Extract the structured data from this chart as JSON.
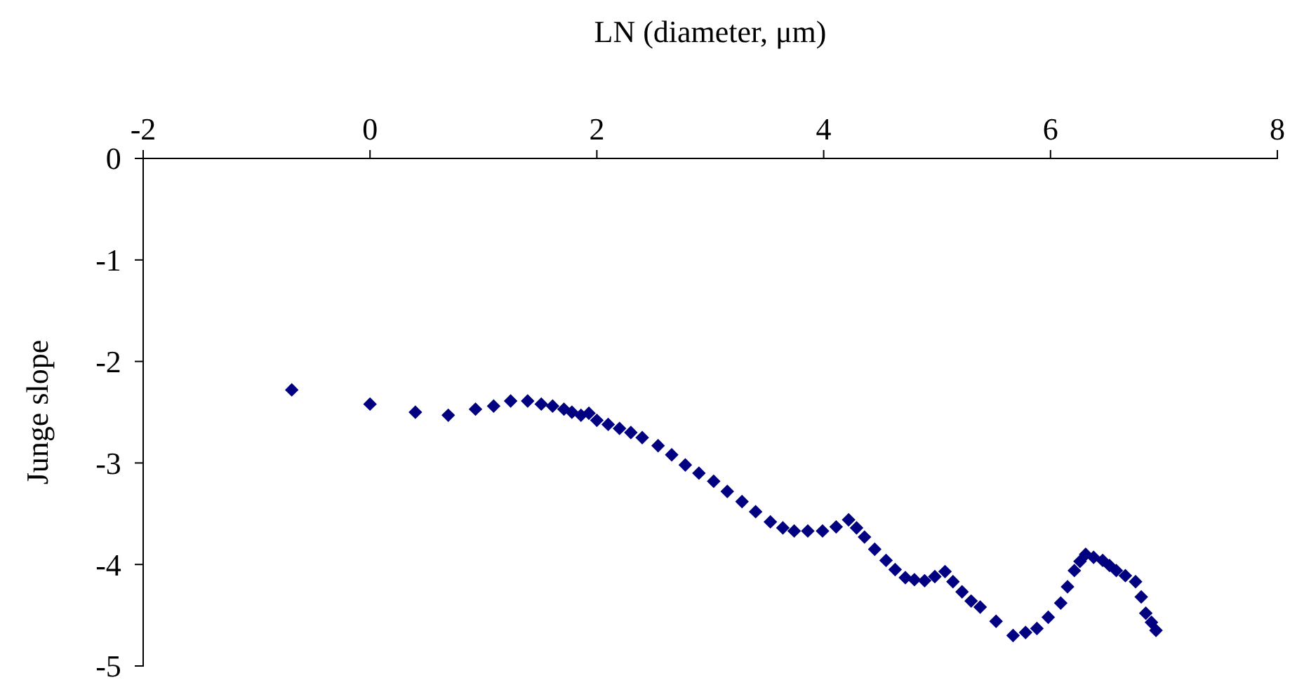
{
  "chart_data": {
    "type": "scatter",
    "xlabel": "LN (diameter, μm)",
    "ylabel": "Junge slope",
    "xlim": [
      -2,
      8
    ],
    "xticks": [
      -2,
      0,
      2,
      4,
      6,
      8
    ],
    "ylim": [
      -5,
      0
    ],
    "yticks": [
      -5,
      -4,
      -3,
      -2,
      -1,
      0
    ],
    "marker": "diamond",
    "series": [
      {
        "color": "#000080",
        "x": [
          -0.69,
          0,
          0.4,
          0.69,
          0.93,
          1.09,
          1.24,
          1.39,
          1.51,
          1.61,
          1.71,
          1.78,
          1.86,
          1.93,
          2.0,
          2.1,
          2.2,
          2.3,
          2.4,
          2.54,
          2.66,
          2.78,
          2.9,
          3.03,
          3.15,
          3.28,
          3.4,
          3.53,
          3.64,
          3.74,
          3.86,
          3.99,
          4.11,
          4.22,
          4.29,
          4.36,
          4.45,
          4.55,
          4.63,
          4.72,
          4.8,
          4.89,
          4.98,
          5.07,
          5.14,
          5.22,
          5.3,
          5.38,
          5.52,
          5.67,
          5.78,
          5.88,
          5.98,
          6.09,
          6.15,
          6.21,
          6.26,
          6.31,
          6.38,
          6.46,
          6.52,
          6.58,
          6.66,
          6.75,
          6.8,
          6.84,
          6.89,
          6.93
        ],
        "values": [
          -2.28,
          -2.42,
          -2.5,
          -2.53,
          -2.47,
          -2.44,
          -2.39,
          -2.39,
          -2.42,
          -2.44,
          -2.47,
          -2.5,
          -2.53,
          -2.51,
          -2.58,
          -2.62,
          -2.66,
          -2.7,
          -2.75,
          -2.83,
          -2.92,
          -3.02,
          -3.1,
          -3.18,
          -3.28,
          -3.38,
          -3.48,
          -3.58,
          -3.64,
          -3.67,
          -3.67,
          -3.67,
          -3.63,
          -3.56,
          -3.64,
          -3.73,
          -3.85,
          -3.96,
          -4.05,
          -4.13,
          -4.15,
          -4.16,
          -4.12,
          -4.07,
          -4.17,
          -4.27,
          -4.36,
          -4.42,
          -4.56,
          -4.7,
          -4.67,
          -4.63,
          -4.52,
          -4.38,
          -4.22,
          -4.06,
          -3.97,
          -3.9,
          -3.93,
          -3.96,
          -4.01,
          -4.06,
          -4.11,
          -4.17,
          -4.32,
          -4.48,
          -4.57,
          -4.65
        ]
      }
    ]
  }
}
